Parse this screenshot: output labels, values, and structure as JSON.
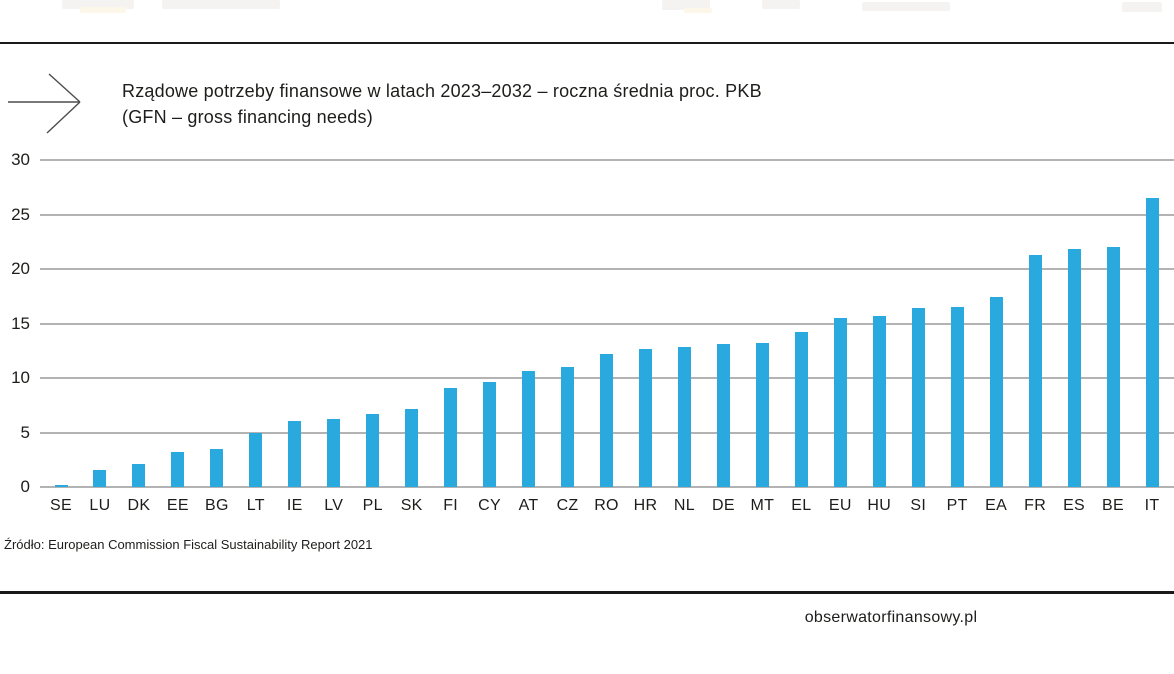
{
  "header": {
    "title_line1": "Rządowe potrzeby finansowe w latach 2023–2032 – roczna średnia proc. PKB",
    "title_line2": "(GFN – gross financing needs)"
  },
  "source_note": "Źródło: European Commission Fiscal Sustainability Report 2021",
  "footer": {
    "domain": "obserwatorfinansowy.pl"
  },
  "colors": {
    "bar": "#2aa9de",
    "gridline": "#b3b3b3",
    "text": "#1d1d1b",
    "rule": "#1a1a1a"
  },
  "chart_data": {
    "type": "bar",
    "title": "Rządowe potrzeby finansowe w latach 2023–2032 – roczna średnia proc. PKB",
    "subtitle": "(GFN – gross financing needs)",
    "categories": [
      "SE",
      "LU",
      "DK",
      "EE",
      "BG",
      "LT",
      "IE",
      "LV",
      "PL",
      "SK",
      "FI",
      "CY",
      "AT",
      "CZ",
      "RO",
      "HR",
      "NL",
      "DE",
      "MT",
      "EL",
      "EU",
      "HU",
      "SI",
      "PT",
      "EA",
      "FR",
      "ES",
      "BE",
      "IT"
    ],
    "values": [
      0.2,
      1.6,
      2.1,
      3.2,
      3.5,
      5.0,
      6.1,
      6.2,
      6.7,
      7.2,
      9.1,
      9.6,
      10.6,
      11.0,
      12.2,
      12.7,
      12.8,
      13.1,
      13.2,
      14.2,
      15.5,
      15.7,
      16.4,
      16.5,
      17.4,
      21.3,
      21.8,
      22.0,
      26.5
    ],
    "xlabel": "",
    "ylabel": "",
    "ylim": [
      0,
      30
    ],
    "yticks": [
      0,
      5,
      10,
      15,
      20,
      25,
      30
    ],
    "grid": true,
    "legend": "none",
    "bar_color": "#2aa9de",
    "source": "Źródło: European Commission Fiscal Sustainability Report 2021"
  }
}
